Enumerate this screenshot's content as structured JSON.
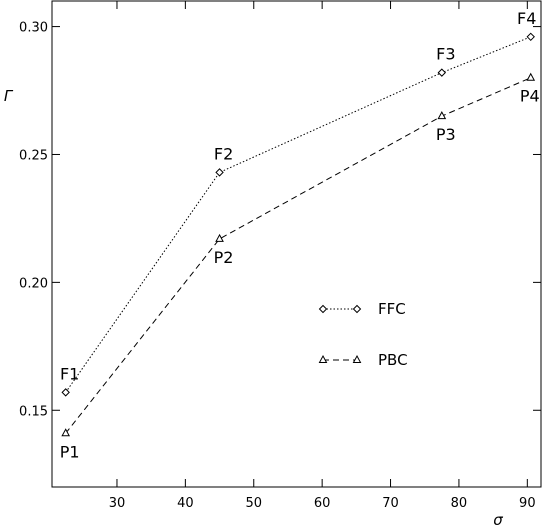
{
  "chart_data": {
    "type": "line",
    "xlabel": "σ",
    "ylabel": "Γ",
    "xlim": [
      20.5,
      92
    ],
    "ylim": [
      0.12,
      0.31
    ],
    "x_ticks": [
      30,
      40,
      50,
      60,
      70,
      80,
      90
    ],
    "y_ticks": [
      0.15,
      0.2,
      0.25,
      0.3
    ],
    "x_tick_labels": [
      "30",
      "40",
      "50",
      "60",
      "70",
      "80",
      "90"
    ],
    "y_tick_labels": [
      "0.15",
      "0.20",
      "0.25",
      "0.30"
    ],
    "grid": false,
    "legend_position": "center-right",
    "series": [
      {
        "name": "FFC",
        "marker": "diamond",
        "line_style": "dotted",
        "x": [
          22.5,
          45,
          77.5,
          90.5
        ],
        "y": [
          0.157,
          0.243,
          0.282,
          0.296
        ],
        "point_labels": [
          "F1",
          "F2",
          "F3",
          "F4"
        ]
      },
      {
        "name": "PBC",
        "marker": "triangle",
        "line_style": "dashed",
        "x": [
          22.5,
          45,
          77.5,
          90.5
        ],
        "y": [
          0.141,
          0.217,
          0.265,
          0.28
        ],
        "point_labels": [
          "P1",
          "P2",
          "P3",
          "P4"
        ]
      }
    ]
  }
}
